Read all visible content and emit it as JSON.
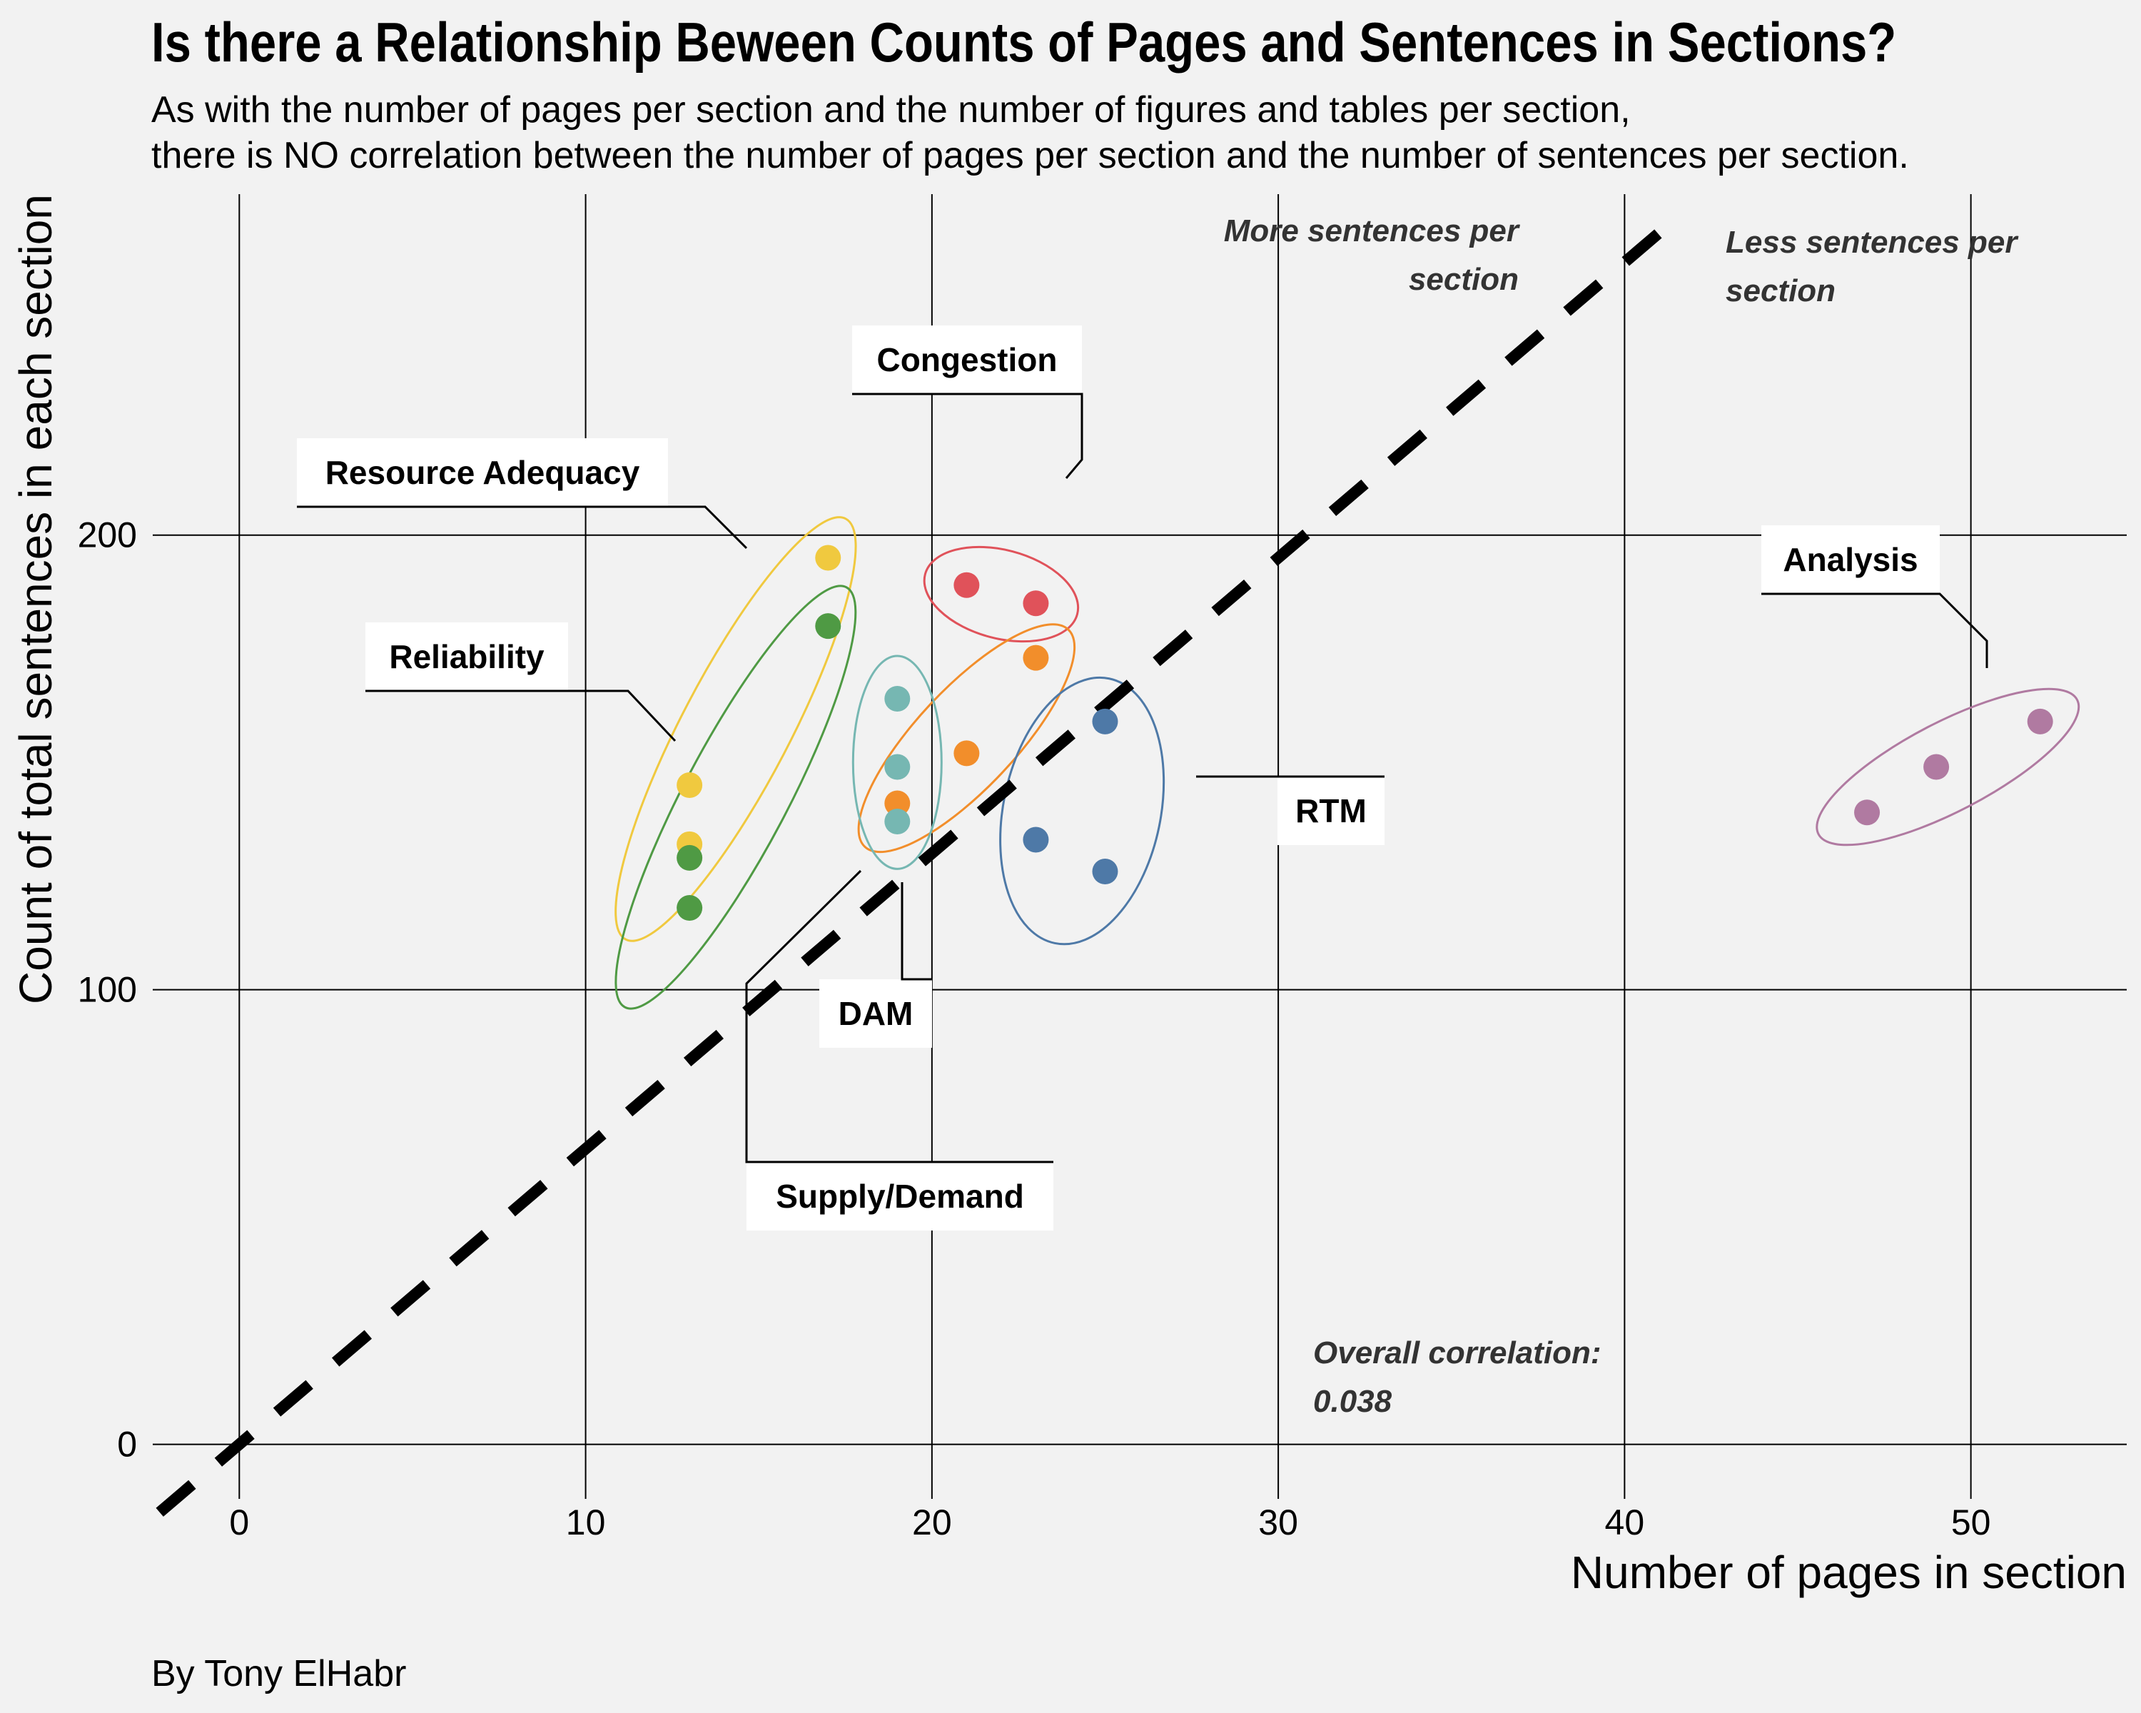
{
  "title": "Is there a Relationship Beween Counts of Pages and Sentences in Sections?",
  "subtitle_lines": [
    "As with the number of pages per section and the number of figures and tables per section,",
    "there is NO correlation between the number of pages per section and the number of sentences per section."
  ],
  "caption": "By Tony ElHabr",
  "chart_data": {
    "type": "scatter",
    "xlabel": "Number of pages in section",
    "ylabel": "Count of total sentences in each section",
    "xlim": [
      -2.5,
      54.5
    ],
    "ylim": [
      -12,
      275
    ],
    "xticks": [
      0,
      10,
      20,
      30,
      40,
      50
    ],
    "yticks": [
      0,
      100,
      200
    ],
    "grid": true,
    "reference_line": {
      "slope": 6.5,
      "intercept": 0,
      "style": "dashed"
    },
    "series": [
      {
        "name": "Resource Adequacy",
        "color": "#f0c93f",
        "points": [
          [
            13,
            145
          ],
          [
            13,
            132
          ],
          [
            17,
            195
          ]
        ]
      },
      {
        "name": "Reliability",
        "color": "#4f9a44",
        "points": [
          [
            13,
            129
          ],
          [
            13,
            118
          ],
          [
            17,
            180
          ]
        ]
      },
      {
        "name": "Congestion",
        "color": "#e0525a",
        "points": [
          [
            21,
            189
          ],
          [
            23,
            185
          ]
        ]
      },
      {
        "name": "Supply/Demand",
        "color": "#f28e2b",
        "points": [
          [
            23,
            173
          ],
          [
            21,
            152
          ],
          [
            19,
            141
          ]
        ]
      },
      {
        "name": "DAM",
        "color": "#76b7b2",
        "points": [
          [
            19,
            164
          ],
          [
            19,
            149
          ],
          [
            19,
            137
          ]
        ]
      },
      {
        "name": "RTM",
        "color": "#4e79a7",
        "points": [
          [
            25,
            159
          ],
          [
            23,
            133
          ],
          [
            25,
            126
          ]
        ]
      },
      {
        "name": "Analysis",
        "color": "#b07aa1",
        "points": [
          [
            47,
            139
          ],
          [
            49,
            149
          ],
          [
            52,
            159
          ]
        ]
      }
    ],
    "annotations": [
      {
        "lines": [
          "More sentences per",
          "section"
        ],
        "align": "right"
      },
      {
        "lines": [
          "Less sentences per",
          "section"
        ],
        "align": "left"
      },
      {
        "lines": [
          "Overall correlation:",
          "0.038"
        ],
        "align": "left"
      }
    ]
  }
}
